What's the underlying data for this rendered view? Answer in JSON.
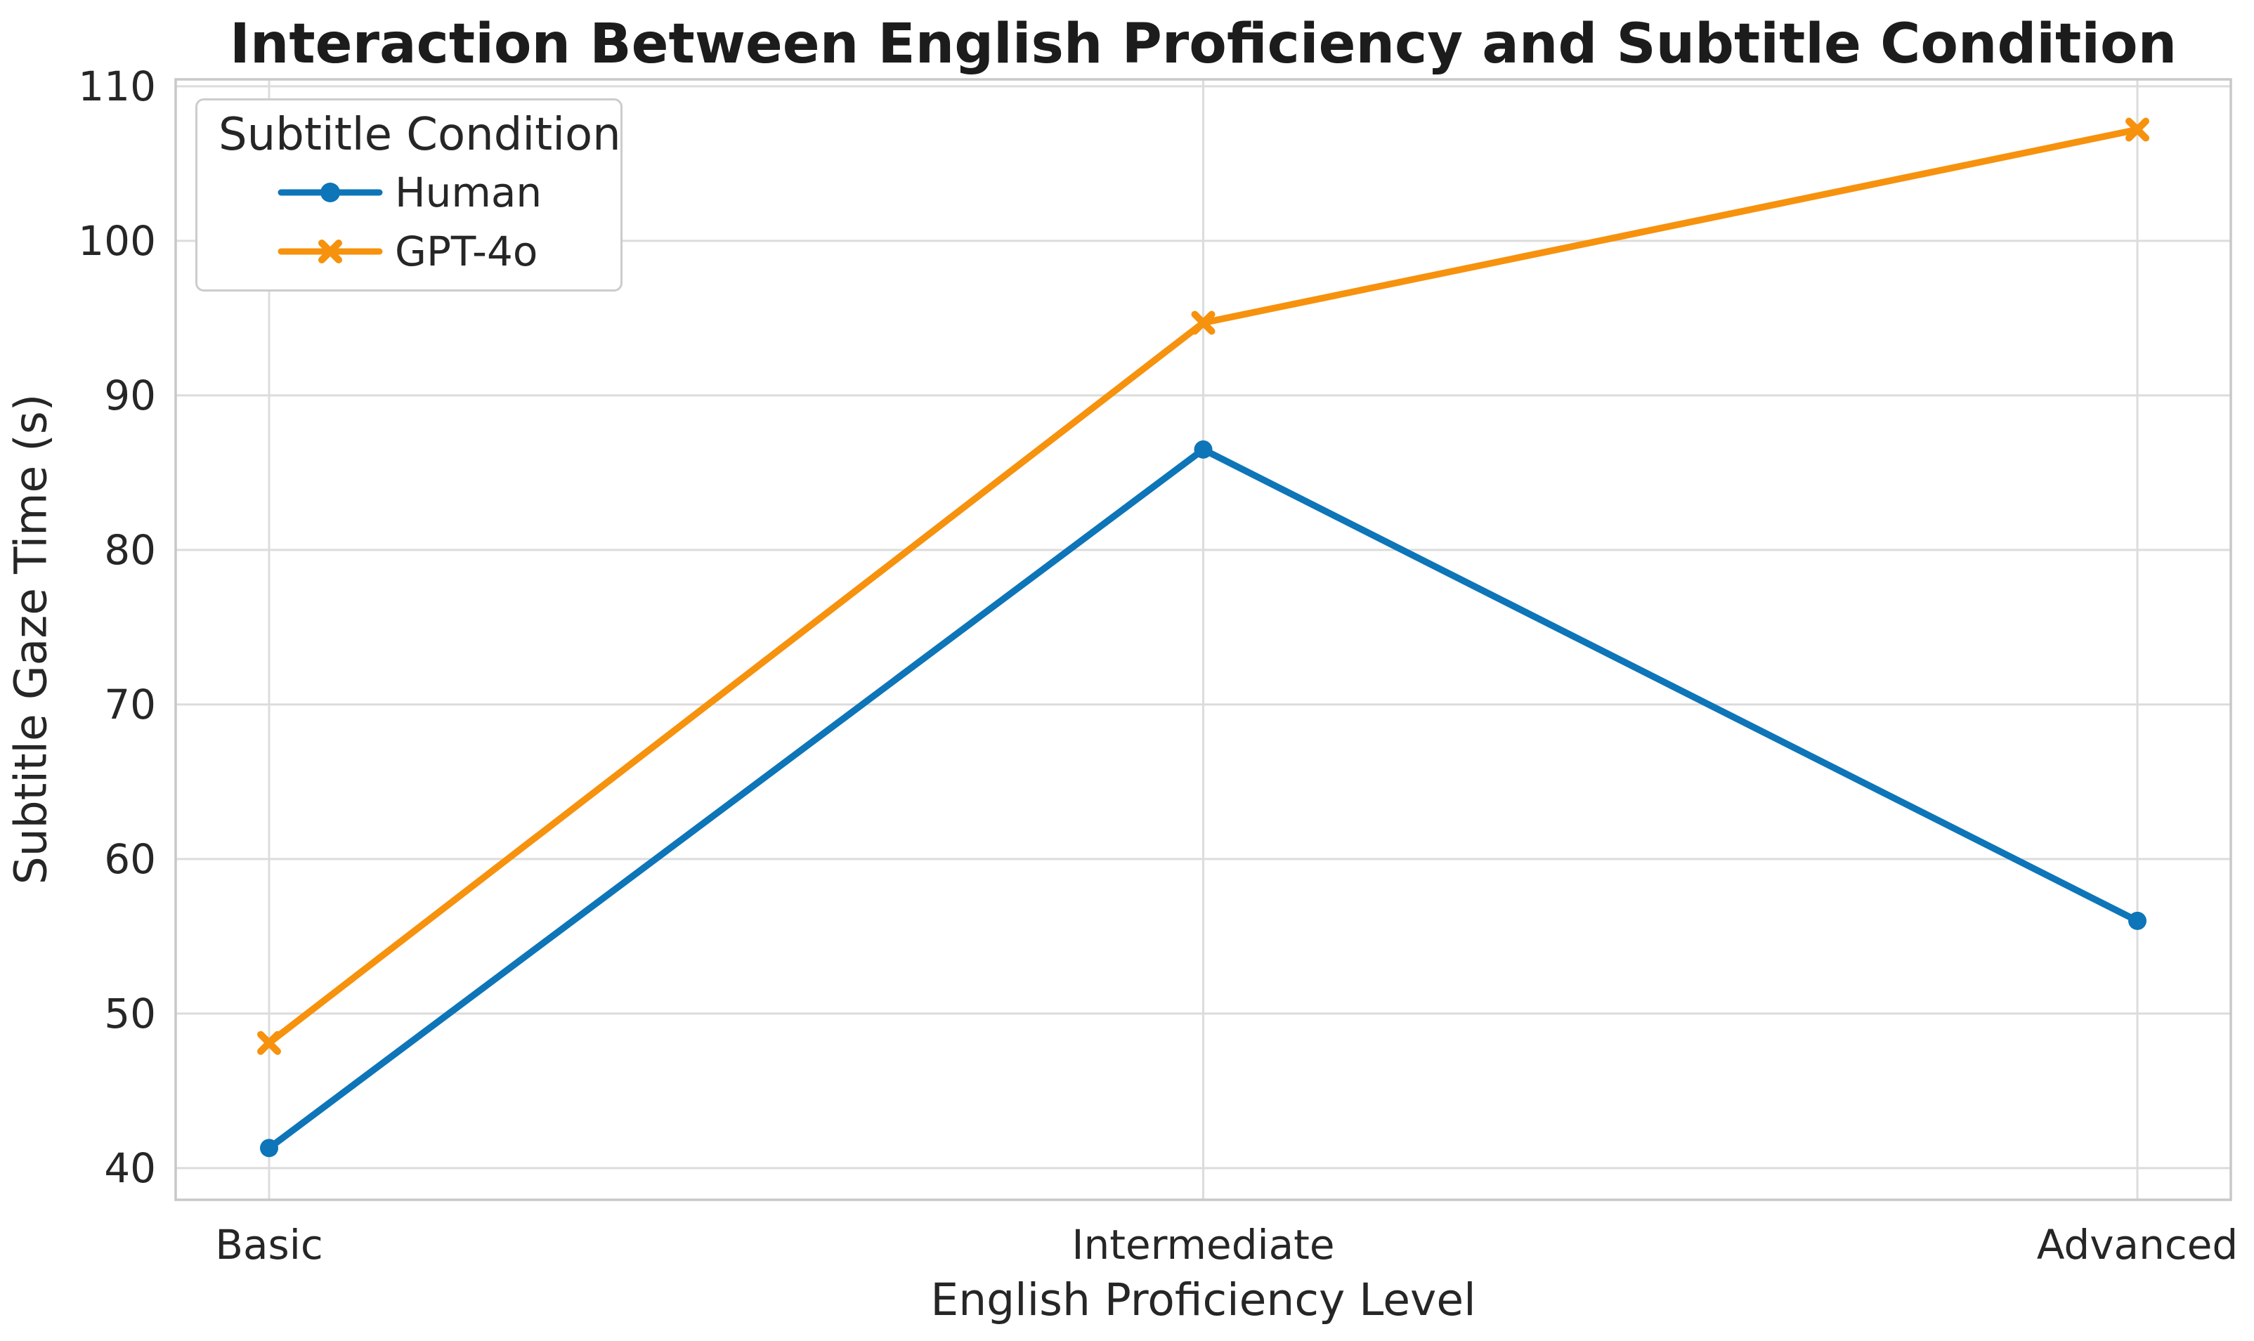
{
  "figure": {
    "background": "#ffffff"
  },
  "chart_data": {
    "type": "line",
    "title": "Interaction Between English Proficiency and Subtitle Condition",
    "xlabel": "English Proficiency Level",
    "ylabel": "Subtitle Gaze Time (s)",
    "categories": [
      "Basic",
      "Intermediate",
      "Advanced"
    ],
    "y_ticks": [
      40,
      50,
      60,
      70,
      80,
      90,
      100,
      110
    ],
    "ylim": [
      37.95,
      110.45
    ],
    "grid": true,
    "legend": {
      "title": "Subtitle Condition",
      "position": "upper-left"
    },
    "series": [
      {
        "name": "Human",
        "marker": "circle",
        "color": "#0d75b8",
        "values": [
          41.3,
          86.5,
          56.0
        ]
      },
      {
        "name": "GPT-4o",
        "marker": "x",
        "color": "#f6920d",
        "values": [
          48.1,
          94.7,
          107.2
        ]
      }
    ],
    "colors": {
      "grid": "#dcdcdc",
      "spine": "#c8c8c8",
      "tick_text": "#262626",
      "title_text": "#1c1c1c"
    }
  }
}
